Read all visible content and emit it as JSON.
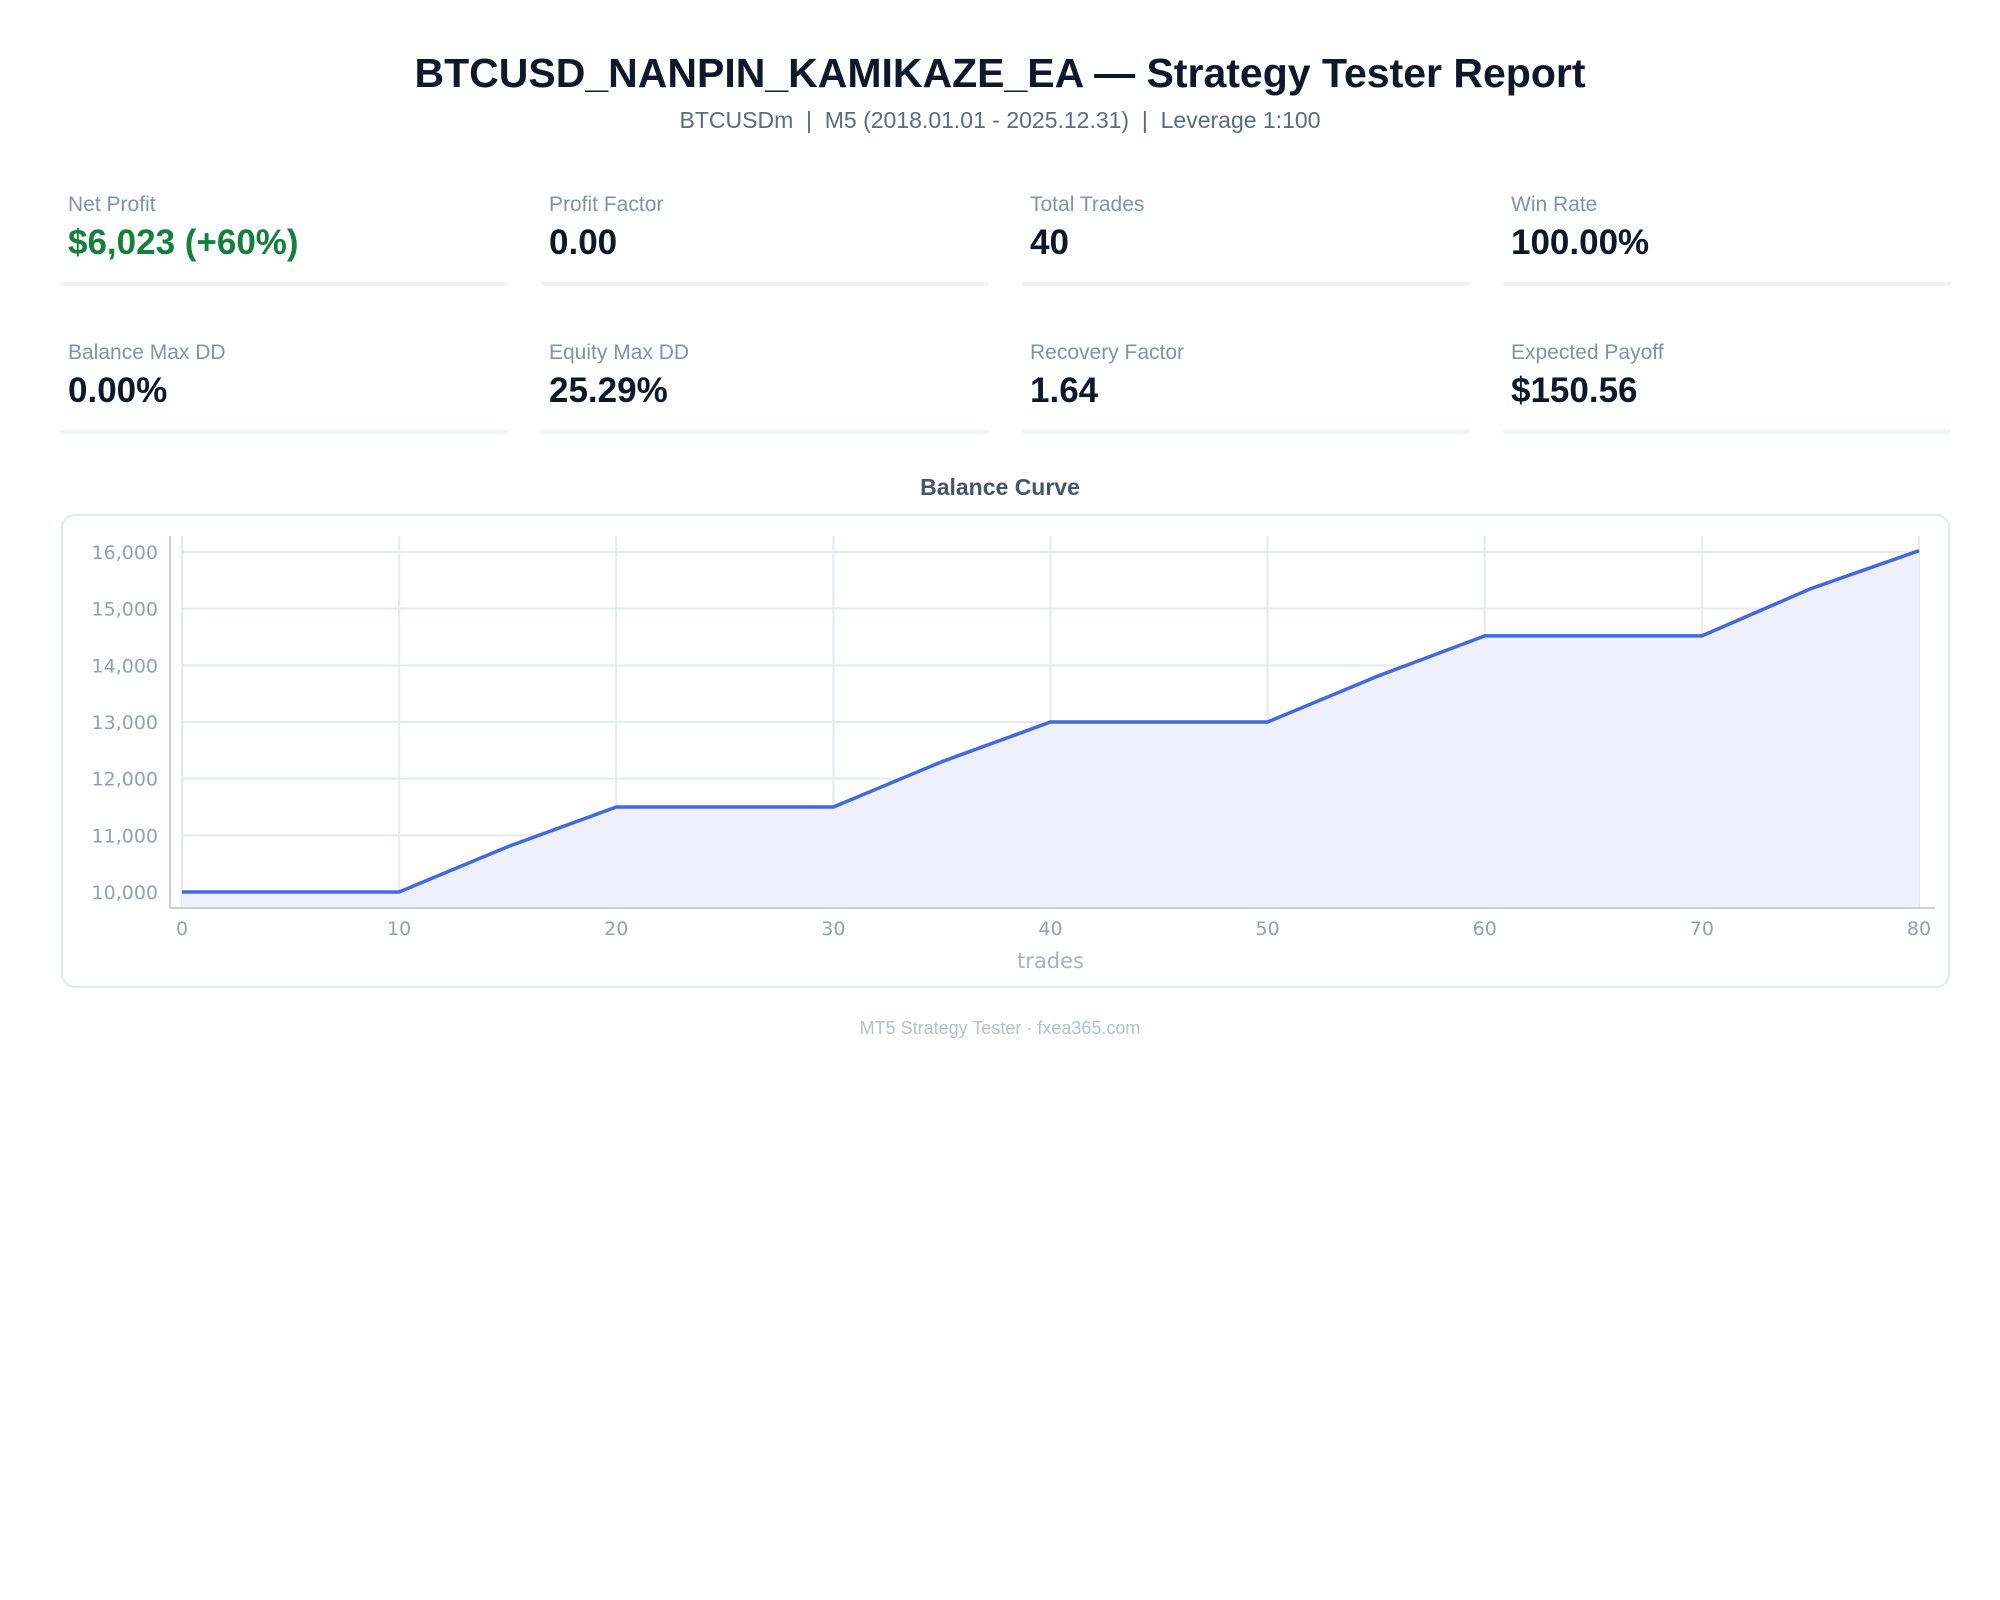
{
  "report": {
    "title": "BTCUSD_NANPIN_KAMIKAZE_EA — Strategy Tester Report",
    "subtitle": "BTCUSDm  |  M5 (2018.01.01 - 2025.12.31)  |  Leverage 1:100",
    "footer": "MT5 Strategy Tester · fxea365.com"
  },
  "metrics": [
    {
      "label": "Net Profit",
      "value": "$6,023 (+60%)",
      "highlight": "positive"
    },
    {
      "label": "Profit Factor",
      "value": "0.00"
    },
    {
      "label": "Total Trades",
      "value": "40"
    },
    {
      "label": "Win Rate",
      "value": "100.00%"
    },
    {
      "label": "Balance Max DD",
      "value": "0.00%"
    },
    {
      "label": "Equity Max DD",
      "value": "25.29%"
    },
    {
      "label": "Recovery Factor",
      "value": "1.64"
    },
    {
      "label": "Expected Payoff",
      "value": "$150.56"
    }
  ],
  "colors": {
    "line": "#4169e1",
    "fill": "#eef1fc",
    "positive": "#15803d"
  },
  "chart_data": {
    "type": "area",
    "title": "Balance Curve",
    "xlabel": "trades",
    "ylabel": "",
    "xlim": [
      0,
      80
    ],
    "ylim": [
      10000,
      16000
    ],
    "xticks": [
      0,
      10,
      20,
      30,
      40,
      50,
      60,
      70,
      80
    ],
    "yticks": [
      10000,
      11000,
      12000,
      13000,
      14000,
      15000,
      16000
    ],
    "tick_labels_x": [
      "0",
      "10",
      "20",
      "30",
      "40",
      "50",
      "60",
      "70",
      "80"
    ],
    "tick_labels_y": [
      "10,000",
      "11,000",
      "12,000",
      "13,000",
      "14,000",
      "15,000",
      "16,000"
    ],
    "grid": true,
    "series": [
      {
        "x": [
          0,
          10,
          15,
          20,
          30,
          35,
          40,
          50,
          55,
          60,
          70,
          75,
          80
        ],
        "y": [
          10000,
          10000,
          10800,
          11500,
          11500,
          12300,
          13000,
          13000,
          13800,
          14520,
          14520,
          15350,
          16023
        ]
      }
    ]
  }
}
